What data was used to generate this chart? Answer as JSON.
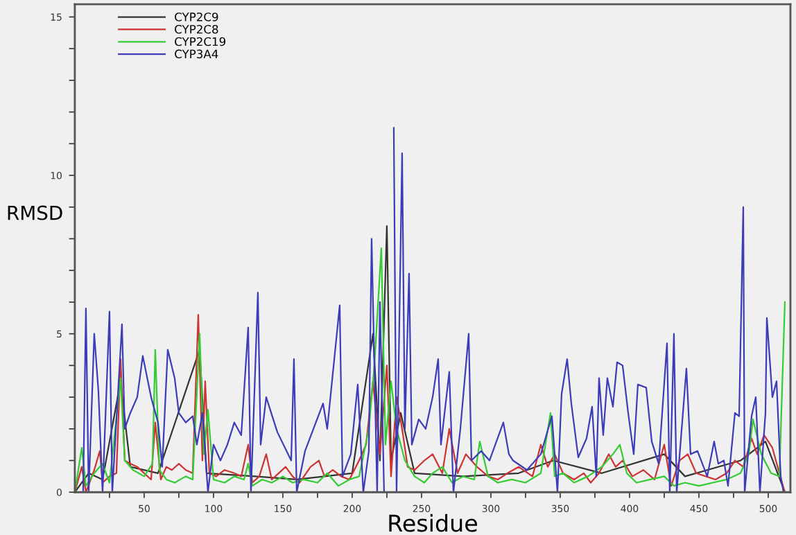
{
  "chart_data": {
    "type": "line",
    "xlabel": "Residue",
    "ylabel": "RMSD",
    "xlim": [
      0,
      516
    ],
    "ylim": [
      0,
      15.4
    ],
    "xticks": [
      {
        "value": 25,
        "label": null
      },
      50,
      {
        "value": 75,
        "label": null
      },
      100,
      {
        "value": 125,
        "label": null
      },
      150,
      {
        "value": 175,
        "label": null
      },
      200,
      {
        "value": 225,
        "label": null
      },
      250,
      {
        "value": 275,
        "label": null
      },
      300,
      {
        "value": 325,
        "label": null
      },
      350,
      {
        "value": 375,
        "label": null
      },
      400,
      {
        "value": 425,
        "label": null
      },
      450,
      {
        "value": 475,
        "label": null
      },
      500
    ],
    "yticks": [
      0,
      {
        "value": 1,
        "label": null
      },
      {
        "value": 2,
        "label": null
      },
      {
        "value": 3,
        "label": null
      },
      {
        "value": 4,
        "label": null
      },
      5,
      {
        "value": 6,
        "label": null
      },
      {
        "value": 7,
        "label": null
      },
      {
        "value": 8,
        "label": null
      },
      {
        "value": 9,
        "label": null
      },
      10,
      {
        "value": 11,
        "label": null
      },
      {
        "value": 12,
        "label": null
      },
      {
        "value": 13,
        "label": null
      },
      {
        "value": 14,
        "label": null
      },
      15
    ],
    "grid": false,
    "legend": "top left",
    "marker": "none",
    "line_style": "solid",
    "series": [
      {
        "name": "CYP2C9",
        "color": "#333333",
        "x": [
          0,
          10,
          20,
          33,
          40,
          60,
          90,
          95,
          130,
          160,
          200,
          215,
          220,
          225,
          228,
          235,
          245,
          280,
          320,
          345,
          380,
          425,
          440,
          480,
          498,
          512
        ],
        "values": [
          0,
          0.6,
          0.4,
          3.5,
          0.8,
          0.6,
          4.5,
          0.6,
          0.5,
          0.4,
          0.6,
          5.0,
          1.0,
          8.4,
          1.0,
          2.5,
          0.6,
          0.5,
          0.6,
          1.0,
          0.6,
          1.2,
          0.5,
          1.0,
          1.6,
          0
        ]
      },
      {
        "name": "CYP2C8",
        "color": "#cc3333",
        "x": [
          0,
          5,
          8,
          14,
          18,
          20,
          25,
          30,
          33,
          36,
          40,
          45,
          50,
          55,
          58,
          62,
          66,
          70,
          75,
          80,
          85,
          89,
          92,
          94,
          97,
          102,
          108,
          115,
          120,
          125,
          128,
          133,
          138,
          142,
          147,
          152,
          157,
          162,
          170,
          176,
          180,
          186,
          192,
          198,
          205,
          210,
          215,
          220,
          225,
          228,
          232,
          236,
          240,
          245,
          252,
          258,
          265,
          270,
          276,
          282,
          290,
          298,
          305,
          312,
          320,
          330,
          336,
          341,
          346,
          352,
          360,
          367,
          372,
          378,
          385,
          390,
          395,
          402,
          410,
          418,
          425,
          430,
          436,
          442,
          448,
          455,
          462,
          470,
          476,
          482,
          488,
          492,
          497,
          503,
          508,
          512
        ],
        "values": [
          0,
          0.8,
          0,
          0.7,
          1.3,
          0.3,
          0.5,
          0.6,
          4.2,
          1.0,
          0.9,
          0.8,
          0.6,
          0.4,
          2.2,
          0.4,
          0.8,
          0.7,
          0.9,
          0.7,
          0.6,
          5.6,
          1.0,
          3.5,
          0.6,
          0.5,
          0.7,
          0.6,
          0.5,
          1.5,
          0.3,
          0.5,
          1.2,
          0.4,
          0.6,
          0.8,
          0.5,
          0.3,
          0.8,
          1.0,
          0.5,
          0.7,
          0.5,
          0.4,
          1.0,
          1.5,
          3.5,
          1.2,
          4.0,
          0.5,
          3.0,
          2.0,
          0.8,
          0.7,
          1.0,
          1.2,
          0.6,
          2.0,
          0.6,
          1.2,
          0.8,
          0.5,
          0.4,
          0.6,
          0.8,
          0.5,
          1.5,
          0.8,
          1.2,
          0.6,
          0.4,
          0.6,
          0.3,
          0.6,
          1.2,
          0.8,
          1.0,
          0.5,
          0.7,
          0.4,
          1.5,
          0.2,
          1.0,
          1.2,
          0.6,
          0.5,
          0.4,
          0.6,
          1.0,
          0.8,
          1.7,
          1.2,
          1.8,
          1.4,
          0.6,
          0
        ]
      },
      {
        "name": "CYP2C19",
        "color": "#33cc33",
        "x": [
          0,
          5,
          8,
          14,
          20,
          25,
          33,
          36,
          42,
          50,
          56,
          58,
          61,
          66,
          72,
          80,
          85,
          90,
          93,
          96,
          100,
          108,
          115,
          122,
          125,
          128,
          135,
          142,
          150,
          157,
          165,
          175,
          182,
          190,
          198,
          205,
          212,
          216,
          221,
          224,
          228,
          232,
          238,
          245,
          252,
          258,
          265,
          272,
          280,
          288,
          292,
          298,
          305,
          315,
          325,
          336,
          343,
          346,
          352,
          360,
          370,
          380,
          388,
          393,
          398,
          405,
          415,
          425,
          432,
          440,
          450,
          460,
          470,
          480,
          486,
          489,
          495,
          502,
          508,
          512
        ],
        "values": [
          0,
          1.4,
          0.2,
          0.6,
          0.9,
          0.3,
          3.6,
          1.0,
          0.7,
          0.5,
          0.9,
          4.5,
          0.7,
          0.4,
          0.3,
          0.5,
          0.4,
          5.0,
          1.2,
          2.6,
          0.4,
          0.3,
          0.5,
          0.4,
          0.9,
          0.2,
          0.4,
          0.3,
          0.5,
          0.3,
          0.4,
          0.3,
          0.6,
          0.2,
          0.4,
          0.5,
          2.0,
          4.0,
          7.7,
          1.5,
          3.5,
          2.0,
          1.0,
          0.5,
          0.3,
          0.6,
          0.8,
          0.3,
          0.5,
          0.4,
          1.6,
          0.5,
          0.3,
          0.4,
          0.3,
          0.6,
          2.5,
          0.5,
          0.6,
          0.3,
          0.5,
          0.8,
          1.2,
          1.5,
          0.6,
          0.3,
          0.4,
          0.5,
          0.2,
          0.3,
          0.2,
          0.3,
          0.4,
          0.6,
          1.2,
          2.3,
          1.2,
          0.6,
          0.5,
          6.0
        ]
      },
      {
        "name": "CYP3A4",
        "color": "#3c3cb8",
        "x": [
          0,
          6,
          8,
          10,
          14,
          17,
          20,
          25,
          27,
          34,
          36,
          40,
          45,
          49,
          55,
          60,
          63,
          67,
          72,
          75,
          80,
          85,
          88,
          92,
          96,
          100,
          105,
          110,
          115,
          120,
          125,
          127,
          132,
          134,
          138,
          146,
          156,
          158,
          160,
          166,
          179,
          182,
          191,
          193,
          199,
          204,
          208,
          212,
          214,
          218,
          220,
          223,
          225,
          228,
          230,
          232,
          236,
          238,
          241,
          243,
          248,
          253,
          258,
          262,
          264,
          270,
          273,
          278,
          284,
          286,
          293,
          299,
          309,
          313,
          316,
          326,
          336,
          344,
          348,
          351,
          355,
          358,
          363,
          369,
          373,
          376,
          378,
          381,
          384,
          388,
          391,
          395,
          399,
          403,
          406,
          412,
          416,
          421,
          427,
          429,
          432,
          434,
          441,
          444,
          449,
          456,
          461,
          464,
          468,
          471,
          476,
          479,
          482,
          483,
          488,
          491,
          494,
          498,
          499,
          503,
          506,
          509,
          511
        ],
        "values": [
          0,
          0,
          5.8,
          0,
          5.0,
          3.2,
          0,
          5.7,
          0,
          5.3,
          2.0,
          2.5,
          3.0,
          4.3,
          3.0,
          2.2,
          0.8,
          4.5,
          3.6,
          2.5,
          2.2,
          2.4,
          1.5,
          2.5,
          0,
          1.5,
          1.0,
          1.5,
          2.2,
          1.8,
          5.2,
          0,
          6.3,
          1.5,
          3.0,
          1.9,
          1.0,
          4.2,
          0,
          1.3,
          2.8,
          2.0,
          5.9,
          0.5,
          1.2,
          3.4,
          0,
          1.3,
          8.0,
          0,
          6.0,
          0,
          null,
          null,
          11.5,
          0,
          10.7,
          2.0,
          6.9,
          1.5,
          2.3,
          2.0,
          3.0,
          4.2,
          1.5,
          3.8,
          0,
          2.0,
          5.0,
          1.0,
          1.3,
          1.0,
          2.2,
          1.2,
          1.0,
          0.7,
          1.2,
          2.4,
          0,
          3.1,
          4.2,
          2.8,
          1.1,
          1.7,
          2.7,
          0.5,
          3.6,
          1.8,
          3.6,
          2.7,
          4.1,
          4.0,
          2.5,
          1.2,
          3.4,
          3.3,
          1.6,
          0.9,
          4.7,
          0,
          5.0,
          0,
          3.9,
          1.2,
          1.3,
          0.5,
          1.6,
          0.9,
          1.0,
          0.2,
          2.5,
          2.4,
          9.0,
          0,
          2.4,
          3.0,
          0,
          2.5,
          5.5,
          3.0,
          3.5,
          0.5,
          0
        ]
      }
    ]
  }
}
